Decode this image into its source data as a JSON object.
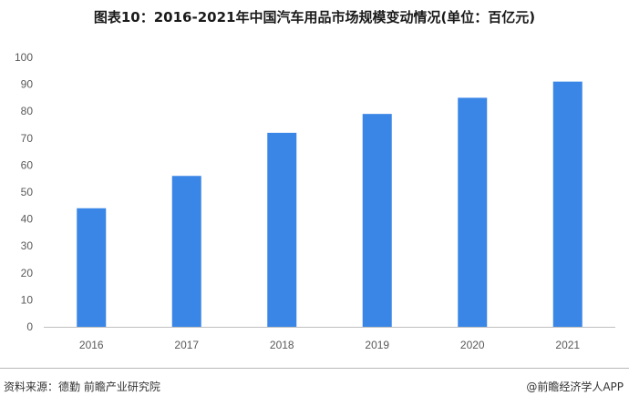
{
  "title": "图表10：2016-2021年中国汽车用品市场规模变动情况(单位：百亿元)",
  "source": "资料来源：德勤 前瞻产业研究院",
  "attribution": "@前瞻经济学人APP",
  "colors": {
    "bar": "#3a86e6",
    "axis": "#bfbfbf",
    "tick_text": "#595959"
  },
  "chart_data": {
    "type": "bar",
    "categories": [
      "2016",
      "2017",
      "2018",
      "2019",
      "2020",
      "2021"
    ],
    "values": [
      44,
      56,
      72,
      79,
      85,
      91
    ],
    "ylim": [
      0,
      100
    ],
    "yticks": [
      0,
      10,
      20,
      30,
      40,
      50,
      60,
      70,
      80,
      90,
      100
    ],
    "grid": false,
    "xlabel": "",
    "ylabel": ""
  }
}
